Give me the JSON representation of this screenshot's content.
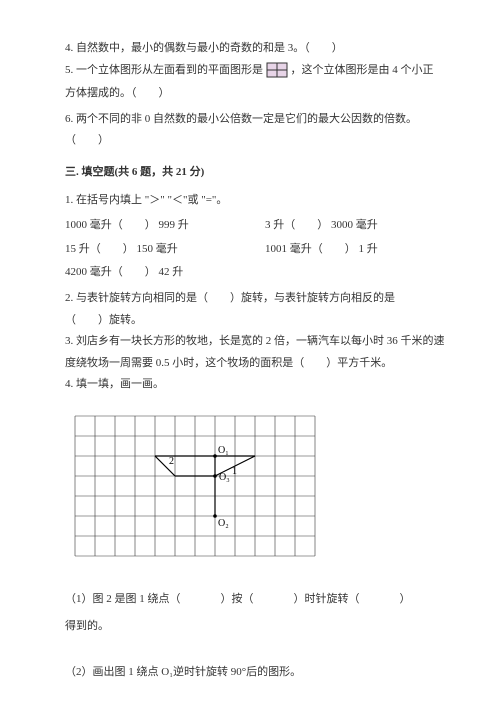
{
  "bracket_open": "（",
  "bracket_close": "）",
  "q4": {
    "text": "4. 自然数中，最小的偶数与最小的奇数的和是 3。（　　）"
  },
  "q5": {
    "pre": "5. 一个立体图形从左面看到的平面图形是",
    "post": "，这个立体图形是由 4 个小正",
    "line2": "方体摆成的。（　　）"
  },
  "q6": {
    "line1": "6. 两个不同的非 0 自然数的最小公倍数一定是它们的最大公因数的倍数。",
    "line2": "（　　）"
  },
  "section3": {
    "title": "三. 填空题(共 6 题，共 21 分)"
  },
  "f1": {
    "prompt": "1. 在括号内填上 \"＞\" \"＜\"或 \"=\"。",
    "rows": [
      [
        "1000 毫升（　　） 999 升",
        "3 升（　　） 3000 毫升"
      ],
      [
        "15 升（　　） 150 毫升",
        "1001 毫升（　　） 1 升"
      ],
      [
        "4200 毫升（　　） 42 升",
        ""
      ]
    ]
  },
  "f2": {
    "line1": "2. 与表针旋转方向相同的是（　　）旋转，与表针旋转方向相反的是",
    "line2": "（　　）旋转。"
  },
  "f3": {
    "line1": "3. 刘店乡有一块长方形的牧地，长是宽的 2 倍，一辆汽车以每小时 36 千米的速",
    "line2": "度绕牧场一周需要 0.5 小时，这个牧场的面积是（　　）平方千米。"
  },
  "f4": {
    "prompt": "4. 填一填，画一画。",
    "labels": {
      "O1": "O₁",
      "O2": "O₂",
      "O3": "O₃",
      "n1": "1",
      "n2": "2"
    },
    "sub1_a": "（1）图 2 是图 1 绕点（",
    "sub1_b": "）按（",
    "sub1_c": "）时针旋转（",
    "sub1_d": "）",
    "sub1_line2": "得到的。",
    "sub2": "（2）画出图 1 绕点 O₁逆时针旋转 90°后的图形。"
  },
  "grid": {
    "cols": 12,
    "rows": 7,
    "cell": 20,
    "stroke": "#333333",
    "shape_stroke": "#000000",
    "shape_sw": 1.2,
    "points": {
      "O1": [
        7,
        2
      ],
      "O3": [
        7,
        3
      ],
      "O2": [
        7,
        5
      ],
      "P_left_top": [
        4,
        2
      ],
      "P_left_mid": [
        5,
        3
      ],
      "P_right": [
        9,
        2
      ]
    }
  }
}
